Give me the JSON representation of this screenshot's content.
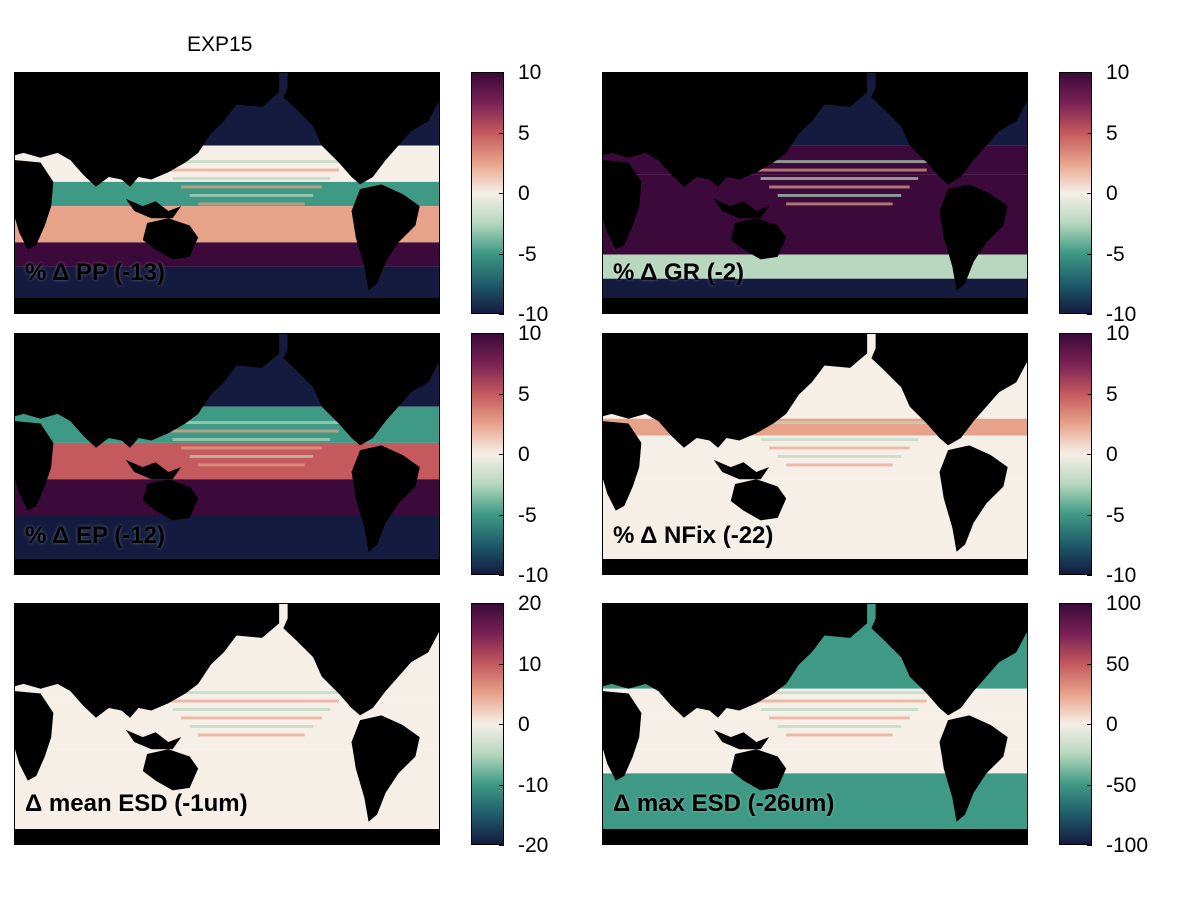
{
  "figure": {
    "title": "EXP15"
  },
  "colormap": {
    "name": "diverging (teal-white-purple)",
    "stops": [
      "#141b3f",
      "#1f5d6c",
      "#3f9a85",
      "#b7d7bf",
      "#f6efe8",
      "#e7a38a",
      "#c4595e",
      "#7a2155",
      "#3b0a3a"
    ]
  },
  "chart_data": [
    {
      "type": "heatmap",
      "panel": "top-left",
      "title": "% Δ PP (-13)",
      "variable": "PP",
      "global_change": -13,
      "units": "%",
      "colorbar": {
        "range": [
          -10,
          10
        ],
        "ticks": [
          10,
          5,
          0,
          -5,
          -10
        ],
        "tick_labels": [
          "10",
          "5",
          "0",
          "-5",
          "-10"
        ]
      },
      "pattern": "mostly negative (-10) across oceans; positive bands in tropics and equatorial Pacific mixed green/white"
    },
    {
      "type": "heatmap",
      "panel": "top-right",
      "title": "% Δ GR (-2)",
      "variable": "GR",
      "global_change": -2,
      "units": "%",
      "colorbar": {
        "range": [
          -10,
          10
        ],
        "ticks": [
          10,
          5,
          0,
          -5,
          -10
        ],
        "tick_labels": [
          "10",
          "5",
          "0",
          "-5",
          "-10"
        ]
      },
      "pattern": "strong positive (+10) over tropical/subtropical oceans; negative at high latitudes"
    },
    {
      "type": "heatmap",
      "panel": "middle-left",
      "title": "% Δ EP (-12)",
      "variable": "EP",
      "global_change": -12,
      "units": "%",
      "colorbar": {
        "range": [
          -10,
          10
        ],
        "ticks": [
          10,
          5,
          0,
          -5,
          -10
        ],
        "tick_labels": [
          "10",
          "5",
          "0",
          "-5",
          "-10"
        ]
      },
      "pattern": "negative at high latitudes; positive subtropical bands; mixed equatorial Pacific"
    },
    {
      "type": "heatmap",
      "panel": "middle-right",
      "title": "% Δ NFix (-22)",
      "variable": "NFix",
      "global_change": -22,
      "units": "%",
      "colorbar": {
        "range": [
          -10,
          10
        ],
        "ticks": [
          10,
          5,
          0,
          -5,
          -10
        ],
        "tick_labels": [
          "10",
          "5",
          "0",
          "-5",
          "-10"
        ]
      },
      "pattern": "near zero over most ocean; positive/negative patches in tropical Atlantic, Indian and western Pacific"
    },
    {
      "type": "heatmap",
      "panel": "bottom-left",
      "title": "Δ mean ESD (-1um)",
      "variable": "mean ESD",
      "global_change": -1,
      "units": "um",
      "colorbar": {
        "range": [
          -20,
          20
        ],
        "ticks": [
          20,
          10,
          0,
          -10,
          -20
        ],
        "tick_labels": [
          "20",
          "10",
          "0",
          "-10",
          "-20"
        ]
      },
      "pattern": "near zero to slightly negative everywhere"
    },
    {
      "type": "heatmap",
      "panel": "bottom-right",
      "title": "Δ max ESD (-26um)",
      "variable": "max ESD",
      "global_change": -26,
      "units": "um",
      "colorbar": {
        "range": [
          -100,
          100
        ],
        "ticks": [
          100,
          50,
          0,
          -50,
          -100
        ],
        "tick_labels": [
          "100",
          "50",
          "0",
          "-50",
          "-100"
        ]
      },
      "pattern": "moderately negative (about -30 to -60) at mid/high latitudes; near zero in subtropical gyres"
    }
  ]
}
